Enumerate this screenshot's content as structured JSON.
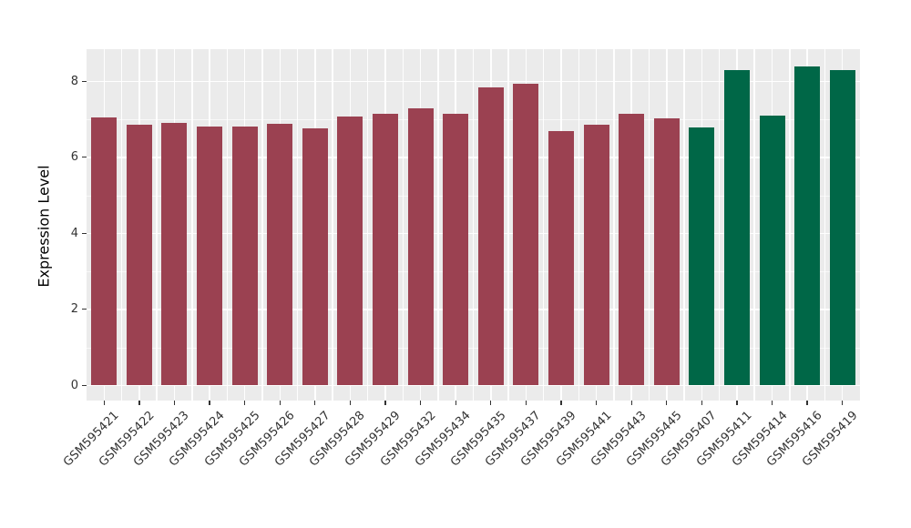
{
  "chart_data": {
    "type": "bar",
    "title": "",
    "xlabel": "",
    "ylabel": "Expression Level",
    "yticks": [
      0,
      2,
      4,
      6,
      8
    ],
    "yticks_minor": [
      1,
      3,
      5,
      7
    ],
    "ylim": [
      0,
      8.84
    ],
    "grid": "on",
    "legend": "none",
    "panel_background": "#EBEBEB",
    "grid_color": "#FFFFFF",
    "axis_text_color": "#333333",
    "palette": {
      "maroon": "#9B4151",
      "green": "#006747"
    },
    "categories": [
      "GSM595421",
      "GSM595422",
      "GSM595423",
      "GSM595424",
      "GSM595425",
      "GSM595426",
      "GSM595427",
      "GSM595428",
      "GSM595429",
      "GSM595432",
      "GSM595434",
      "GSM595435",
      "GSM595437",
      "GSM595439",
      "GSM595441",
      "GSM595443",
      "GSM595445",
      "GSM595407",
      "GSM595411",
      "GSM595414",
      "GSM595416",
      "GSM595419"
    ],
    "values": [
      7.05,
      6.85,
      6.9,
      6.8,
      6.82,
      6.88,
      6.76,
      7.08,
      7.15,
      7.3,
      7.15,
      7.85,
      7.93,
      6.7,
      6.85,
      7.15,
      7.03,
      6.79,
      8.3,
      7.1,
      8.38,
      8.3
    ],
    "bar_color_keys": [
      "maroon",
      "maroon",
      "maroon",
      "maroon",
      "maroon",
      "maroon",
      "maroon",
      "maroon",
      "maroon",
      "maroon",
      "maroon",
      "maroon",
      "maroon",
      "maroon",
      "maroon",
      "maroon",
      "maroon",
      "green",
      "green",
      "green",
      "green",
      "green"
    ]
  }
}
